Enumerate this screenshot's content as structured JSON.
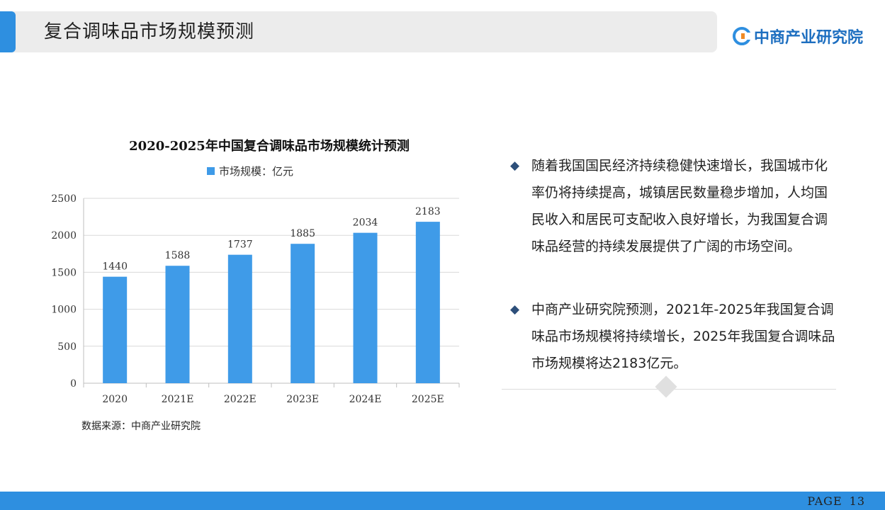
{
  "header": {
    "title": "复合调味品市场规模预测"
  },
  "logo": {
    "text": "中商产业研究院",
    "icon": "company-logo-icon",
    "color": "#1e6fc0"
  },
  "chart_data": {
    "type": "bar",
    "title": "2020-2025年中国复合调味品市场规模统计预测",
    "legend": "市场规模：亿元",
    "legend_position": "top",
    "categories": [
      "2020",
      "2021E",
      "2022E",
      "2023E",
      "2024E",
      "2025E"
    ],
    "series": [
      {
        "name": "市场规模：亿元",
        "values": [
          1440,
          1588,
          1737,
          1885,
          2034,
          2183
        ],
        "color": "#3f9be8"
      }
    ],
    "ylim": [
      0,
      2500
    ],
    "yticks": [
      0,
      500,
      1000,
      1500,
      2000,
      2500
    ],
    "grid": true,
    "xlabel": "",
    "ylabel": ""
  },
  "source": "数据来源：中商产业研究院",
  "bullets": [
    {
      "text": "随着我国国民经济持续稳健快速增长，我国城市化率仍将持续提高，城镇居民数量稳步增加，人均国民收入和居民可支配收入良好增长，为我国复合调味品经营的持续发展提供了广阔的市场空间。"
    },
    {
      "text": "中商产业研究院预测，2021年-2025年我国复合调味品市场规模将持续增长，2025年我国复合调味品市场规模将达2183亿元。"
    }
  ],
  "footer": {
    "page_label": "PAGE",
    "page_number": "13"
  },
  "colors": {
    "accent": "#2e8fe0",
    "bar": "#3f9be8",
    "bullet": "#2d4f7a"
  }
}
